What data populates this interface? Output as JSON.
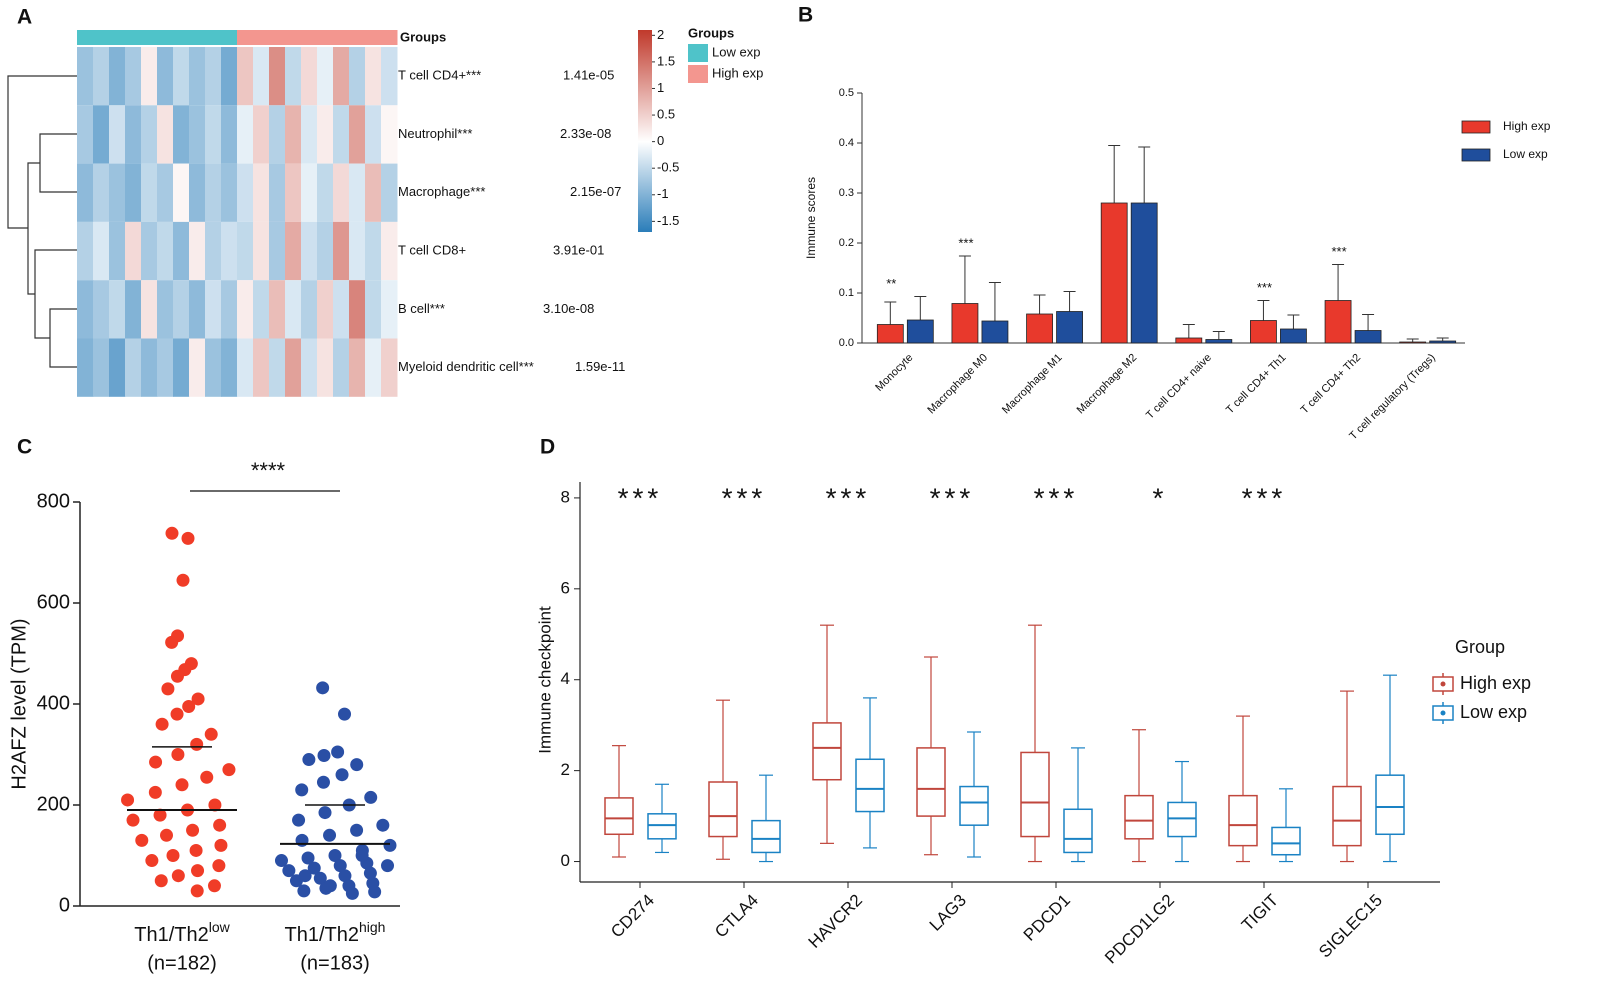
{
  "chart_data": [
    {
      "type": "heatmap",
      "label": "A",
      "groups_title": "Groups",
      "groups": [
        {
          "name": "Low exp",
          "color": "#4fc3c9"
        },
        {
          "name": "High exp",
          "color": "#f3968f"
        }
      ],
      "column_groups": [
        0,
        0,
        0,
        0,
        0,
        0,
        0,
        0,
        0,
        0,
        1,
        1,
        1,
        1,
        1,
        1,
        1,
        1,
        1,
        1
      ],
      "colors": {
        "low": "#2a7db9",
        "mid": "#ffffff",
        "high": "#c0392b"
      },
      "zlim": [
        -1.7,
        2.1
      ],
      "colorbar_ticks": [
        2,
        1.5,
        1,
        0.5,
        0,
        -0.5,
        -1,
        -1.5
      ],
      "rows": [
        {
          "name": "T cell CD4+***",
          "p": "1.41e-05",
          "values": [
            -0.8,
            -0.6,
            -1.0,
            -0.7,
            0.2,
            -0.9,
            -0.5,
            -0.8,
            -0.6,
            -1.1,
            0.6,
            -0.3,
            1.2,
            -0.5,
            0.4,
            -0.2,
            0.9,
            -0.6,
            0.3,
            -0.4
          ]
        },
        {
          "name": "Neutrophil***",
          "p": "2.33e-08",
          "values": [
            -0.7,
            -1.1,
            -0.4,
            -0.9,
            -0.6,
            0.3,
            -1.0,
            -0.8,
            -0.5,
            -0.9,
            -0.2,
            0.5,
            -0.6,
            0.8,
            -0.3,
            0.2,
            -0.5,
            1.0,
            -0.4,
            0.1
          ]
        },
        {
          "name": "Macrophage***",
          "p": "2.15e-07",
          "values": [
            -0.9,
            -0.6,
            -0.8,
            -1.0,
            -0.5,
            -0.7,
            0.1,
            -0.9,
            -0.6,
            -0.8,
            -0.4,
            0.3,
            -0.7,
            0.6,
            -0.2,
            -0.5,
            0.4,
            -0.3,
            0.7,
            -0.6
          ]
        },
        {
          "name": "T cell CD8+",
          "p": "3.91e-01",
          "values": [
            -0.6,
            -0.3,
            -0.8,
            0.4,
            -0.7,
            -0.5,
            -0.9,
            0.2,
            -0.6,
            -0.4,
            -0.5,
            0.3,
            -0.7,
            0.9,
            -0.4,
            -0.6,
            1.1,
            -0.3,
            -0.5,
            0.2
          ]
        },
        {
          "name": "B cell***",
          "p": "3.10e-08",
          "values": [
            -0.9,
            -0.7,
            -0.5,
            -1.0,
            0.3,
            -0.8,
            -0.6,
            -0.9,
            -0.4,
            -0.7,
            0.2,
            -0.5,
            0.7,
            -0.3,
            -0.6,
            0.5,
            -0.4,
            1.3,
            -0.5,
            -0.2
          ]
        },
        {
          "name": "Myeloid dendritic cell***",
          "p": "1.59e-11",
          "values": [
            -1.0,
            -0.8,
            -1.2,
            -0.6,
            -0.9,
            -0.7,
            -1.1,
            0.2,
            -0.8,
            -1.0,
            -0.3,
            0.6,
            -0.5,
            1.0,
            -0.4,
            0.3,
            -0.6,
            0.8,
            -0.2,
            0.5
          ]
        }
      ]
    },
    {
      "type": "bar",
      "label": "B",
      "ylabel": "Immune scores",
      "categories": [
        "Monocyte",
        "Macrophage M0",
        "Macrophage M1",
        "Macrophage M2",
        "T cell CD4+ naive",
        "T cell CD4+ Th1",
        "T cell CD4+ Th2",
        "T cell regulatory (Tregs)"
      ],
      "series": [
        {
          "name": "High exp",
          "color": "#e8392c",
          "values": [
            0.037,
            0.079,
            0.058,
            0.28,
            0.01,
            0.045,
            0.085,
            0.002
          ],
          "errors": [
            0.045,
            0.095,
            0.038,
            0.115,
            0.027,
            0.04,
            0.072,
            0.006
          ]
        },
        {
          "name": "Low exp",
          "color": "#1f4e9c",
          "values": [
            0.046,
            0.044,
            0.063,
            0.28,
            0.007,
            0.028,
            0.025,
            0.004
          ],
          "errors": [
            0.047,
            0.077,
            0.04,
            0.112,
            0.016,
            0.028,
            0.032,
            0.006
          ]
        }
      ],
      "significance": [
        "**",
        "***",
        null,
        null,
        null,
        "***",
        "***",
        null
      ],
      "ylim": [
        0,
        0.5
      ],
      "yticks": [
        {
          "value": 0,
          "label": "0.0"
        },
        0.1,
        0.2,
        0.3,
        0.4,
        0.5
      ],
      "legend": "upper right"
    },
    {
      "type": "dotplot",
      "label": "C",
      "ylabel": "H2AFZ level (TPM)",
      "significance": "****",
      "groups": [
        {
          "base": "Th1/Th2",
          "sup": "low",
          "n": "(n=182)",
          "color": "#f03c27",
          "mean": 190,
          "sd": 125,
          "points": [
            738,
            728,
            645,
            535,
            522,
            480,
            468,
            455,
            430,
            410,
            395,
            380,
            360,
            340,
            320,
            300,
            285,
            270,
            255,
            240,
            225,
            210,
            200,
            190,
            180,
            170,
            160,
            150,
            140,
            130,
            120,
            110,
            100,
            90,
            80,
            70,
            60,
            50,
            40,
            30
          ]
        },
        {
          "base": "Th1/Th2",
          "sup": "high",
          "n": "(n=183)",
          "color": "#2a4fa5",
          "mean": 123,
          "sd": 77,
          "points": [
            432,
            380,
            305,
            298,
            290,
            280,
            260,
            245,
            230,
            215,
            200,
            185,
            170,
            160,
            150,
            140,
            130,
            120,
            110,
            100,
            95,
            90,
            85,
            80,
            75,
            70,
            65,
            60,
            55,
            50,
            45,
            40,
            35,
            30,
            28,
            25,
            40,
            60,
            80,
            100
          ]
        }
      ],
      "ylim": [
        0,
        800
      ],
      "yticks": [
        0,
        200,
        400,
        600,
        800
      ]
    },
    {
      "type": "box",
      "label": "D",
      "ylabel": "Immune checkpoint",
      "legend_title": "Group",
      "categories": [
        "CD274",
        "CTLA4",
        "HAVCR2",
        "LAG3",
        "PDCD1",
        "PDCD1LG2",
        "TIGIT",
        "SIGLEC15"
      ],
      "series": [
        {
          "name": "High exp",
          "color": "#c0463c",
          "q1": [
            0.6,
            0.55,
            1.8,
            1.0,
            0.55,
            0.5,
            0.35,
            0.35
          ],
          "median": [
            0.95,
            1.0,
            2.5,
            1.6,
            1.3,
            0.9,
            0.8,
            0.9
          ],
          "q3": [
            1.4,
            1.75,
            3.05,
            2.5,
            2.4,
            1.45,
            1.45,
            1.65
          ],
          "whislo": [
            0.1,
            0.05,
            0.4,
            0.15,
            0,
            0,
            0,
            0
          ],
          "whishi": [
            2.55,
            3.55,
            5.2,
            4.5,
            5.2,
            2.9,
            3.2,
            3.75
          ]
        },
        {
          "name": "Low exp",
          "color": "#1a82c4",
          "q1": [
            0.5,
            0.2,
            1.1,
            0.8,
            0.2,
            0.55,
            0.15,
            0.6
          ],
          "median": [
            0.8,
            0.5,
            1.6,
            1.3,
            0.5,
            0.95,
            0.4,
            1.2
          ],
          "q3": [
            1.05,
            0.9,
            2.25,
            1.65,
            1.15,
            1.3,
            0.75,
            1.9
          ],
          "whislo": [
            0.2,
            0,
            0.3,
            0.1,
            0,
            0,
            0,
            0
          ],
          "whishi": [
            1.7,
            1.9,
            3.6,
            2.85,
            2.5,
            2.2,
            1.6,
            4.1
          ]
        }
      ],
      "significance": [
        "***",
        "***",
        "***",
        "***",
        "***",
        "*",
        "***",
        null
      ],
      "ylim": [
        -0.45,
        8.35
      ],
      "yticks": [
        0,
        2,
        4,
        6,
        8
      ],
      "legend": "right"
    }
  ]
}
